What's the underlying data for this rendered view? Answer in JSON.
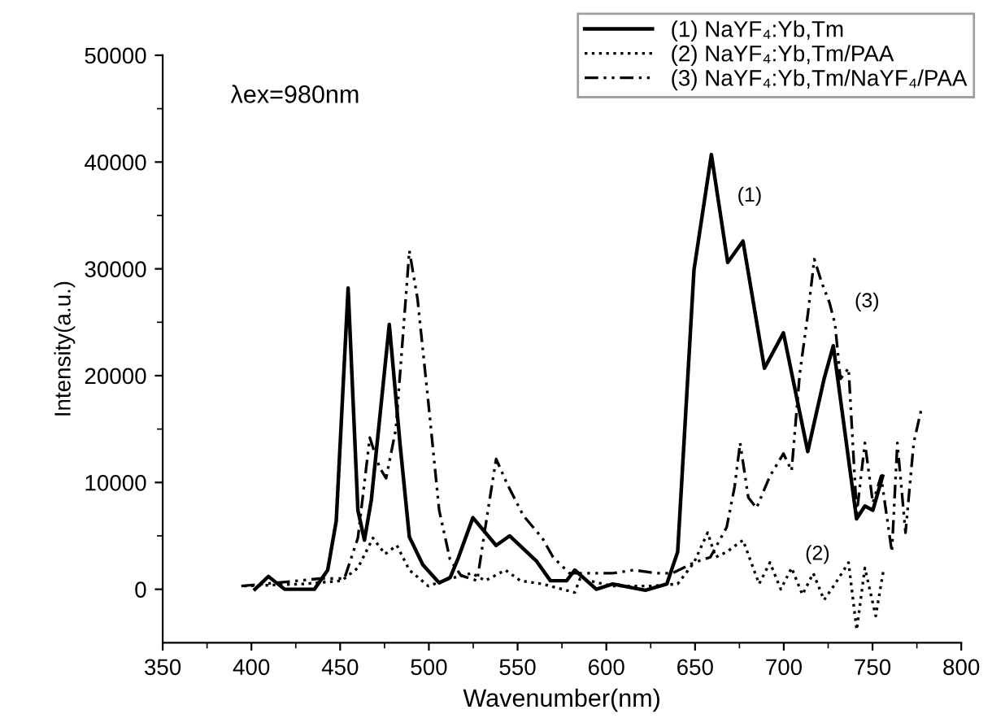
{
  "chart_data": {
    "type": "line",
    "xlabel": "Wavenumber(nm)",
    "ylabel": "Intensity(a.u.)",
    "xlim": [
      350,
      800
    ],
    "xticks": [
      350,
      400,
      450,
      500,
      550,
      600,
      650,
      700,
      750,
      800
    ],
    "ylim": [
      -5000,
      50000
    ],
    "yticks": [
      0,
      10000,
      20000,
      30000,
      40000,
      50000
    ],
    "grid": false,
    "legend": "top right",
    "marker": "none",
    "annotations": [
      "λex=980nm",
      "(1)",
      "(3)",
      "(2)"
    ],
    "series": [
      {
        "name": "(1) NaYF₄:Yb,Tm",
        "color": "#000000",
        "line_style": "solid",
        "x": [
          402,
          409.6,
          418.7,
          435.5,
          443,
          447.8,
          454.5,
          460,
          463.7,
          467.6,
          477.7,
          483.8,
          489,
          496.6,
          505.8,
          512,
          516.5,
          524.8,
          537.9,
          545.5,
          560.8,
          568.5,
          577.6,
          582.2,
          594.4,
          603.6,
          622,
          634.1,
          640.2,
          649.4,
          659.2,
          668.4,
          677,
          689.1,
          699.8,
          713.5,
          722.7,
          727.9,
          741,
          745.7,
          750.2,
          755.7
        ],
        "values": [
          0,
          1200,
          0,
          0,
          1800,
          6400,
          28200,
          7400,
          4600,
          8400,
          24800,
          13500,
          4900,
          2300,
          600,
          1100,
          2900,
          6700,
          4100,
          5000,
          2600,
          800,
          800,
          1800,
          0,
          500,
          -100,
          500,
          3500,
          29900,
          40700,
          30600,
          32600,
          20700,
          24000,
          12900,
          19700,
          22800,
          6600,
          7800,
          7400,
          10600
        ]
      },
      {
        "name": "(2) NaYF₄:Yb,Tm/PAA",
        "color": "#000000",
        "line_style": "dotted",
        "x": [
          395.8,
          429.4,
          450.8,
          460,
          468.5,
          475.3,
          482,
          489,
          499.7,
          511.9,
          524.2,
          531.8,
          543.1,
          551.6,
          563.9,
          582.2,
          585.2,
          603.6,
          625,
          640.2,
          649.4,
          657.1,
          661.6,
          667.8,
          677,
          686.1,
          692.2,
          698.3,
          704.4,
          710.5,
          716.6,
          722.7,
          728.9,
          736.5,
          741.1,
          745.7,
          751.8,
          756.4
        ],
        "values": [
          300,
          500,
          800,
          2000,
          4800,
          3300,
          4100,
          1800,
          300,
          1000,
          1500,
          800,
          1800,
          800,
          500,
          -300,
          1000,
          300,
          300,
          500,
          2500,
          5300,
          3000,
          3500,
          4600,
          500,
          2500,
          0,
          2000,
          -500,
          1500,
          -1000,
          500,
          2500,
          -3800,
          2000,
          -2500,
          2000
        ]
      },
      {
        "name": "(3) NaYF₄:Yb,Tm/NaYF₄/PAA",
        "color": "#000000",
        "line_style": "dashdot",
        "x": [
          394.3,
          426.4,
          438.6,
          452.4,
          460,
          466.7,
          472.2,
          475.9,
          481.4,
          486,
          489,
          493.6,
          499.7,
          505.8,
          511.9,
          518,
          527.2,
          533.3,
          537.9,
          544,
          553.2,
          563.9,
          570,
          579.2,
          588.3,
          603.6,
          615.8,
          628,
          637.2,
          649.4,
          658.6,
          667.8,
          672.3,
          675.4,
          680,
          684.6,
          692.2,
          699.8,
          704.4,
          709,
          713.6,
          717.2,
          721.2,
          725.8,
          728.9,
          731.9,
          736.5,
          741.1,
          745.7,
          750.2,
          754.8,
          760.9,
          764,
          768.6,
          773.2,
          777.7
        ],
        "values": [
          300,
          800,
          1000,
          1000,
          4800,
          14200,
          11400,
          10400,
          15000,
          25100,
          31700,
          27200,
          17500,
          7400,
          2800,
          1300,
          800,
          7400,
          12200,
          9900,
          6900,
          4800,
          3000,
          1500,
          1500,
          1500,
          1800,
          1500,
          1500,
          2500,
          3000,
          5800,
          9600,
          13700,
          8600,
          7600,
          10600,
          12700,
          11100,
          20200,
          25800,
          30900,
          28800,
          26800,
          24800,
          19700,
          20700,
          7100,
          13700,
          8100,
          10600,
          3500,
          13700,
          5300,
          13700,
          17000
        ]
      }
    ]
  }
}
